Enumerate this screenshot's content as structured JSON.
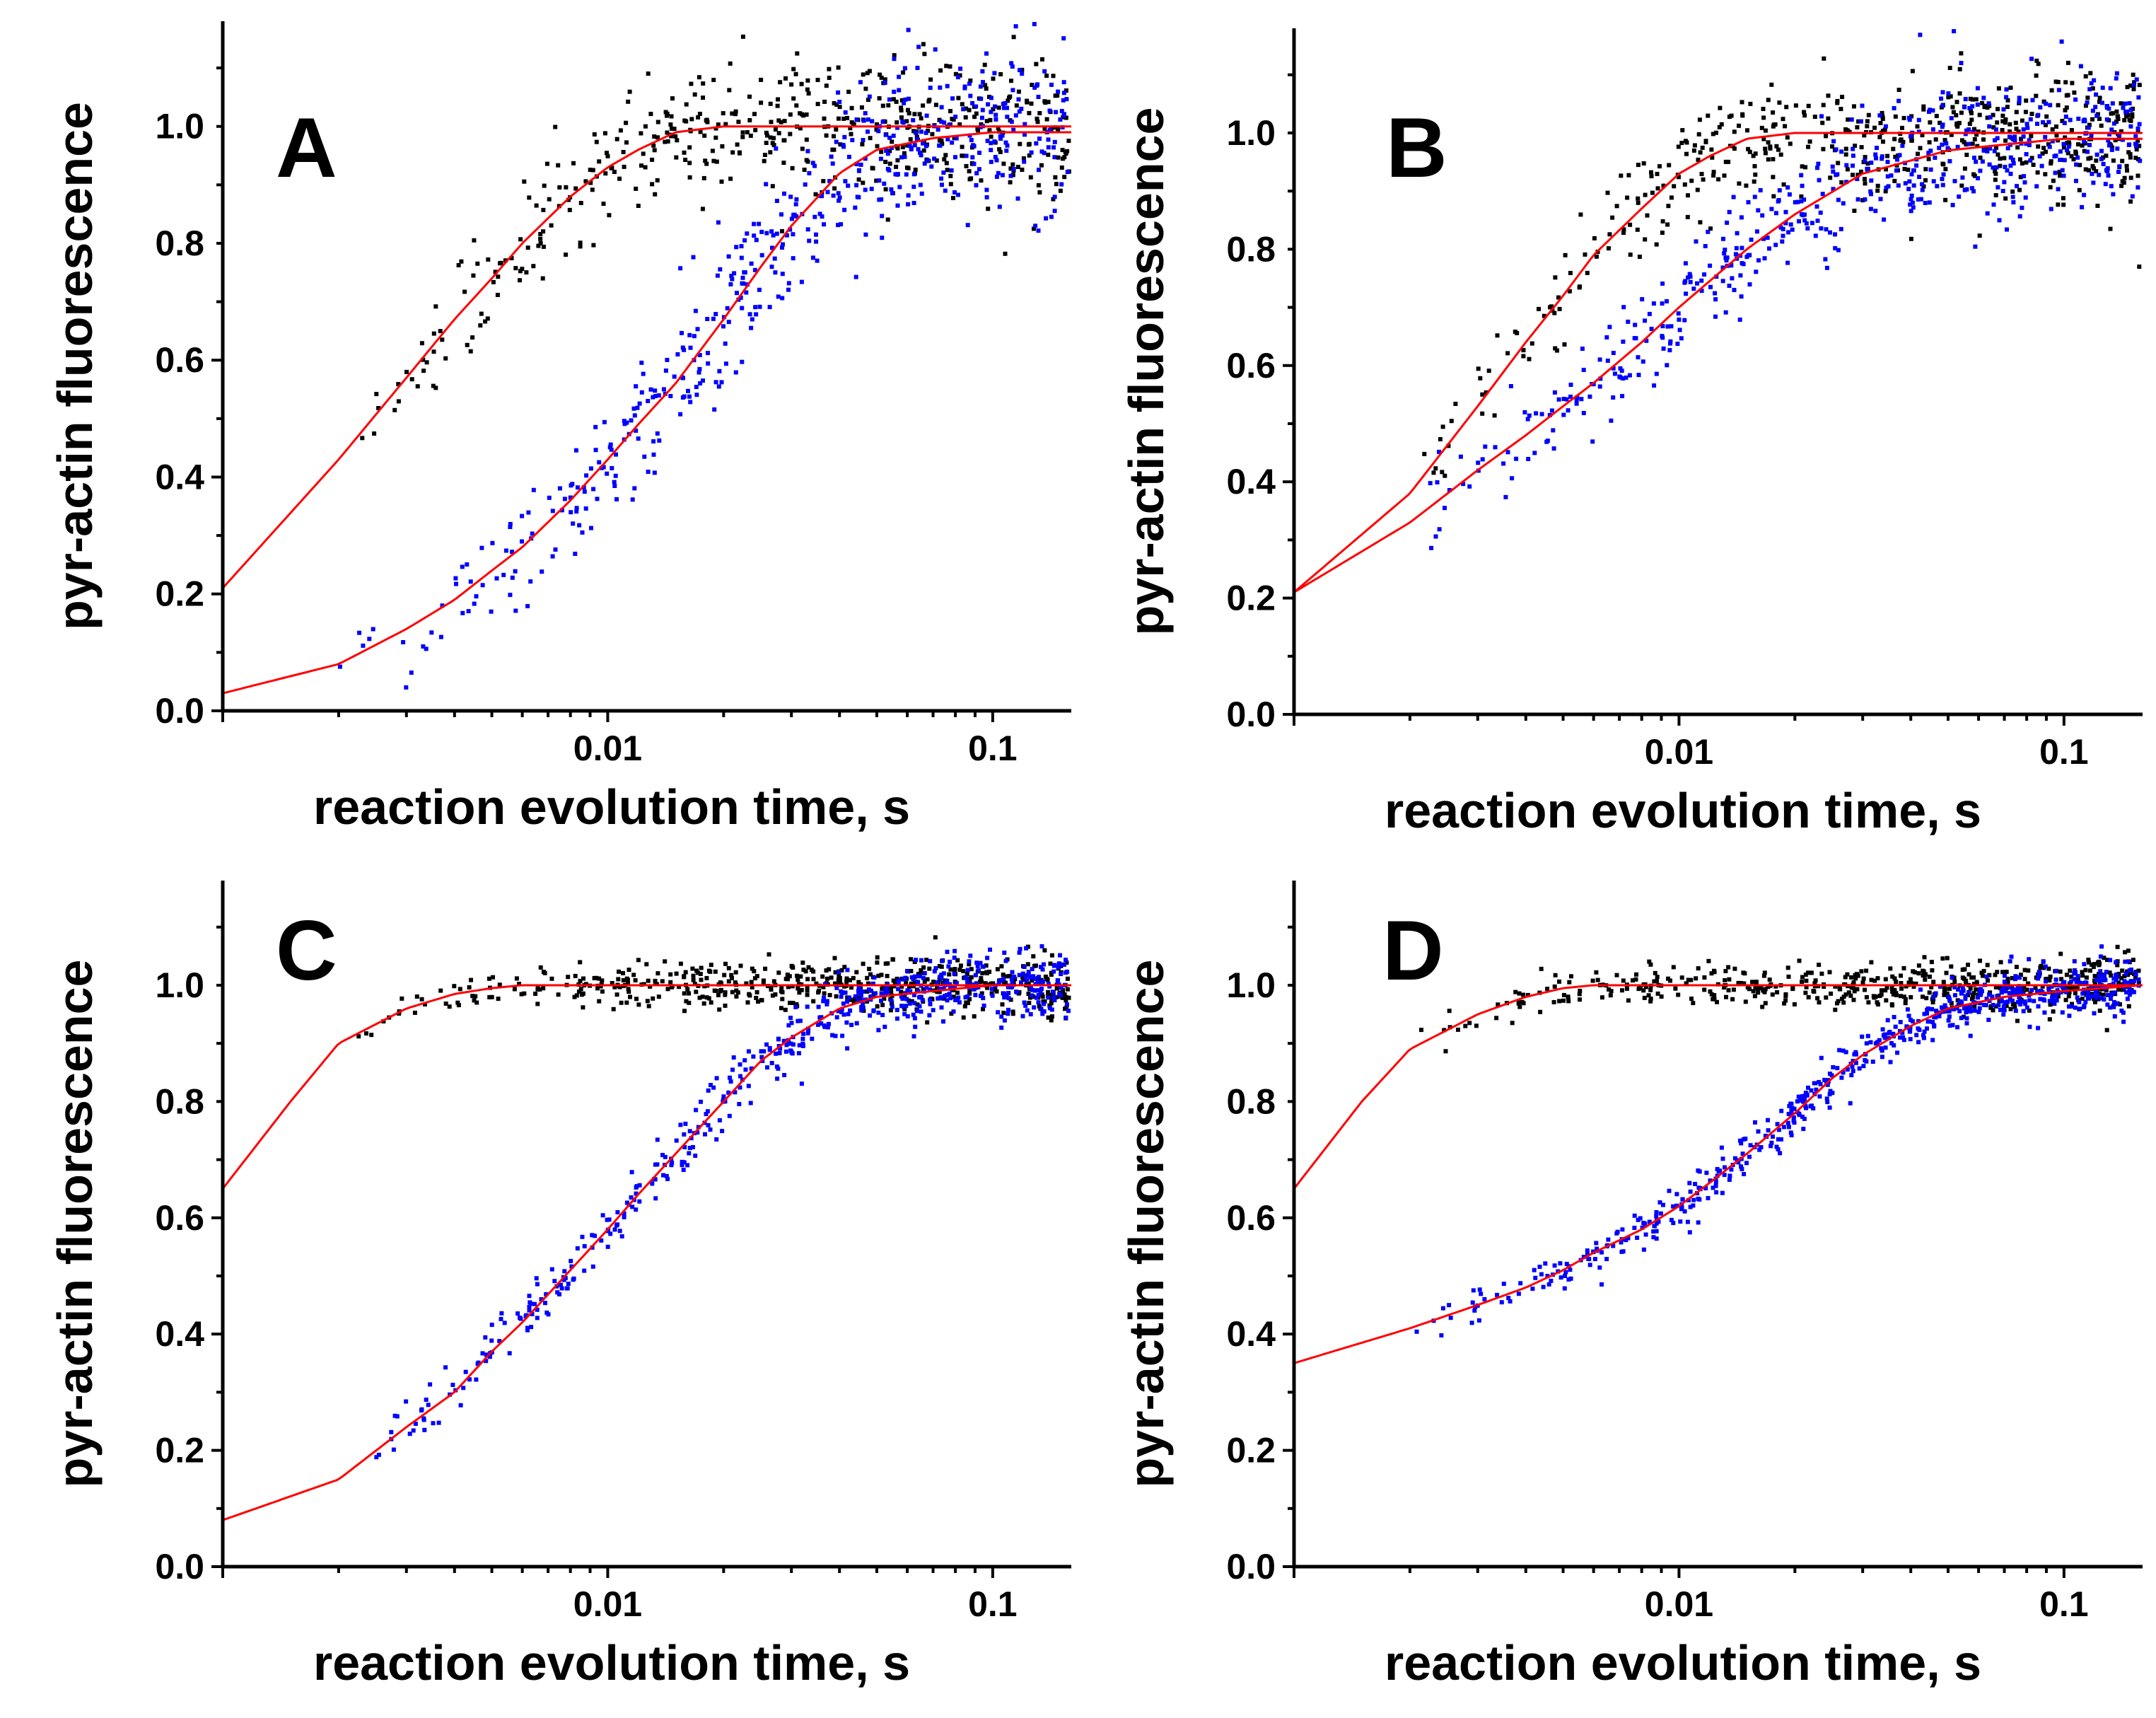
{
  "figure": {
    "description_free": true
  },
  "colors": {
    "control": "#000000",
    "sample": "#0000ff",
    "fit": "#ff0000",
    "axes": "#000000"
  },
  "chart_data": [
    {
      "id": "A",
      "panel_label": "A",
      "type": "scatter",
      "xlabel": "reaction evolution time, s",
      "ylabel": "pyr-actin fluorescence",
      "xscale": "log",
      "xlim": [
        0.001,
        0.16
      ],
      "ylim": [
        0.0,
        1.18
      ],
      "xticks": [
        {
          "value": 0.01,
          "label": "0.01"
        },
        {
          "value": 0.1,
          "label": "0.1"
        }
      ],
      "yticks": [
        {
          "value": 0.0,
          "label": "0.0"
        },
        {
          "value": 0.2,
          "label": "0.2"
        },
        {
          "value": 0.4,
          "label": "0.4"
        },
        {
          "value": 0.6,
          "label": "0.6"
        },
        {
          "value": 0.8,
          "label": "0.8"
        },
        {
          "value": 1.0,
          "label": "1.0"
        }
      ],
      "series": [
        {
          "name": "black data",
          "color": "#000000",
          "x_start": 0.002,
          "x_end": 0.16,
          "n": 520,
          "noise": 0.05,
          "fit": {
            "x": [
              0.001,
              0.002,
              0.003,
              0.004,
              0.005,
              0.006,
              0.008,
              0.01,
              0.012,
              0.015,
              0.02,
              0.03,
              0.05,
              0.1,
              0.16
            ],
            "y": [
              0.21,
              0.43,
              0.57,
              0.67,
              0.74,
              0.8,
              0.88,
              0.93,
              0.96,
              0.99,
              1.0,
              1.0,
              1.0,
              1.0,
              1.0
            ]
          }
        },
        {
          "name": "blue data",
          "color": "#0000ff",
          "x_start": 0.002,
          "x_end": 0.16,
          "n": 520,
          "noise": 0.06,
          "fit": {
            "x": [
              0.001,
              0.002,
              0.003,
              0.004,
              0.005,
              0.006,
              0.008,
              0.01,
              0.012,
              0.015,
              0.02,
              0.025,
              0.03,
              0.04,
              0.05,
              0.07,
              0.1,
              0.16
            ],
            "y": [
              0.03,
              0.08,
              0.14,
              0.19,
              0.24,
              0.28,
              0.36,
              0.43,
              0.49,
              0.56,
              0.67,
              0.76,
              0.83,
              0.92,
              0.96,
              0.98,
              0.99,
              0.99
            ]
          }
        }
      ]
    },
    {
      "id": "B",
      "panel_label": "B",
      "type": "scatter",
      "xlabel": "reaction evolution time, s",
      "ylabel": "pyr-actin fluorescence",
      "xscale": "log",
      "xlim": [
        0.001,
        0.16
      ],
      "ylim": [
        0.0,
        1.18
      ],
      "xticks": [
        {
          "value": 0.01,
          "label": "0.01"
        },
        {
          "value": 0.1,
          "label": "0.1"
        }
      ],
      "yticks": [
        {
          "value": 0.0,
          "label": "0.0"
        },
        {
          "value": 0.2,
          "label": "0.2"
        },
        {
          "value": 0.4,
          "label": "0.4"
        },
        {
          "value": 0.6,
          "label": "0.6"
        },
        {
          "value": 0.8,
          "label": "0.8"
        },
        {
          "value": 1.0,
          "label": "1.0"
        }
      ],
      "series": [
        {
          "name": "black data",
          "color": "#000000",
          "x_start": 0.002,
          "x_end": 0.16,
          "n": 540,
          "noise": 0.05,
          "fit": {
            "x": [
              0.001,
              0.002,
              0.003,
              0.004,
              0.005,
              0.006,
              0.008,
              0.01,
              0.012,
              0.015,
              0.02,
              0.03,
              0.05,
              0.1,
              0.16
            ],
            "y": [
              0.21,
              0.38,
              0.53,
              0.64,
              0.72,
              0.79,
              0.87,
              0.93,
              0.96,
              0.99,
              1.0,
              1.0,
              1.0,
              1.0,
              1.0
            ]
          }
        },
        {
          "name": "blue data",
          "color": "#0000ff",
          "x_start": 0.002,
          "x_end": 0.16,
          "n": 540,
          "noise": 0.05,
          "fit": {
            "x": [
              0.001,
              0.002,
              0.003,
              0.004,
              0.005,
              0.006,
              0.008,
              0.01,
              0.015,
              0.02,
              0.03,
              0.05,
              0.07,
              0.1,
              0.16
            ],
            "y": [
              0.21,
              0.33,
              0.42,
              0.48,
              0.53,
              0.57,
              0.64,
              0.7,
              0.8,
              0.86,
              0.93,
              0.97,
              0.98,
              0.99,
              0.99
            ]
          }
        }
      ]
    },
    {
      "id": "C",
      "panel_label": "C",
      "type": "scatter",
      "xlabel": "reaction evolution time, s",
      "ylabel": "pyr-actin fluorescence",
      "xscale": "log",
      "xlim": [
        0.001,
        0.16
      ],
      "ylim": [
        0.0,
        1.18
      ],
      "xticks": [
        {
          "value": 0.01,
          "label": "0.01"
        },
        {
          "value": 0.1,
          "label": "0.1"
        }
      ],
      "yticks": [
        {
          "value": 0.0,
          "label": "0.0"
        },
        {
          "value": 0.2,
          "label": "0.2"
        },
        {
          "value": 0.4,
          "label": "0.4"
        },
        {
          "value": 0.6,
          "label": "0.6"
        },
        {
          "value": 0.8,
          "label": "0.8"
        },
        {
          "value": 1.0,
          "label": "1.0"
        }
      ],
      "series": [
        {
          "name": "black data",
          "color": "#000000",
          "x_start": 0.002,
          "x_end": 0.16,
          "n": 560,
          "noise": 0.02,
          "fit": {
            "x": [
              0.001,
              0.0015,
              0.002,
              0.003,
              0.004,
              0.005,
              0.006,
              0.008,
              0.01,
              0.02,
              0.05,
              0.1,
              0.16
            ],
            "y": [
              0.65,
              0.8,
              0.9,
              0.96,
              0.985,
              0.995,
              1.0,
              1.0,
              1.0,
              1.0,
              1.0,
              1.0,
              1.0
            ]
          }
        },
        {
          "name": "blue data",
          "color": "#0000ff",
          "x_start": 0.0022,
          "x_end": 0.16,
          "n": 560,
          "noise": 0.025,
          "fit": {
            "x": [
              0.001,
              0.002,
              0.003,
              0.004,
              0.005,
              0.006,
              0.008,
              0.01,
              0.012,
              0.015,
              0.02,
              0.025,
              0.03,
              0.04,
              0.05,
              0.07,
              0.1,
              0.16
            ],
            "y": [
              0.08,
              0.15,
              0.24,
              0.3,
              0.37,
              0.42,
              0.51,
              0.58,
              0.64,
              0.71,
              0.8,
              0.87,
              0.91,
              0.96,
              0.98,
              0.99,
              1.0,
              1.0
            ]
          }
        }
      ]
    },
    {
      "id": "D",
      "panel_label": "D",
      "type": "scatter",
      "xlabel": "reaction evolution time, s",
      "ylabel": "pyr-actin fluorescence",
      "xscale": "log",
      "xlim": [
        0.001,
        0.16
      ],
      "ylim": [
        0.0,
        1.18
      ],
      "xticks": [
        {
          "value": 0.01,
          "label": "0.01"
        },
        {
          "value": 0.1,
          "label": "0.1"
        }
      ],
      "yticks": [
        {
          "value": 0.0,
          "label": "0.0"
        },
        {
          "value": 0.2,
          "label": "0.2"
        },
        {
          "value": 0.4,
          "label": "0.4"
        },
        {
          "value": 0.6,
          "label": "0.6"
        },
        {
          "value": 0.8,
          "label": "0.8"
        },
        {
          "value": 1.0,
          "label": "1.0"
        }
      ],
      "series": [
        {
          "name": "black data",
          "color": "#000000",
          "x_start": 0.002,
          "x_end": 0.16,
          "n": 560,
          "noise": 0.02,
          "fit": {
            "x": [
              0.001,
              0.0015,
              0.002,
              0.003,
              0.004,
              0.005,
              0.006,
              0.008,
              0.01,
              0.02,
              0.05,
              0.1,
              0.16
            ],
            "y": [
              0.65,
              0.8,
              0.89,
              0.95,
              0.98,
              0.995,
              1.0,
              1.0,
              1.0,
              1.0,
              1.0,
              1.0,
              1.0
            ]
          }
        },
        {
          "name": "blue data",
          "color": "#0000ff",
          "x_start": 0.002,
          "x_end": 0.16,
          "n": 620,
          "noise": 0.02,
          "fit": {
            "x": [
              0.001,
              0.002,
              0.003,
              0.004,
              0.005,
              0.006,
              0.008,
              0.01,
              0.012,
              0.015,
              0.02,
              0.025,
              0.03,
              0.04,
              0.05,
              0.07,
              0.1,
              0.16
            ],
            "y": [
              0.35,
              0.41,
              0.45,
              0.48,
              0.51,
              0.54,
              0.58,
              0.62,
              0.66,
              0.71,
              0.78,
              0.84,
              0.88,
              0.93,
              0.96,
              0.98,
              0.99,
              1.0
            ]
          }
        }
      ]
    }
  ]
}
